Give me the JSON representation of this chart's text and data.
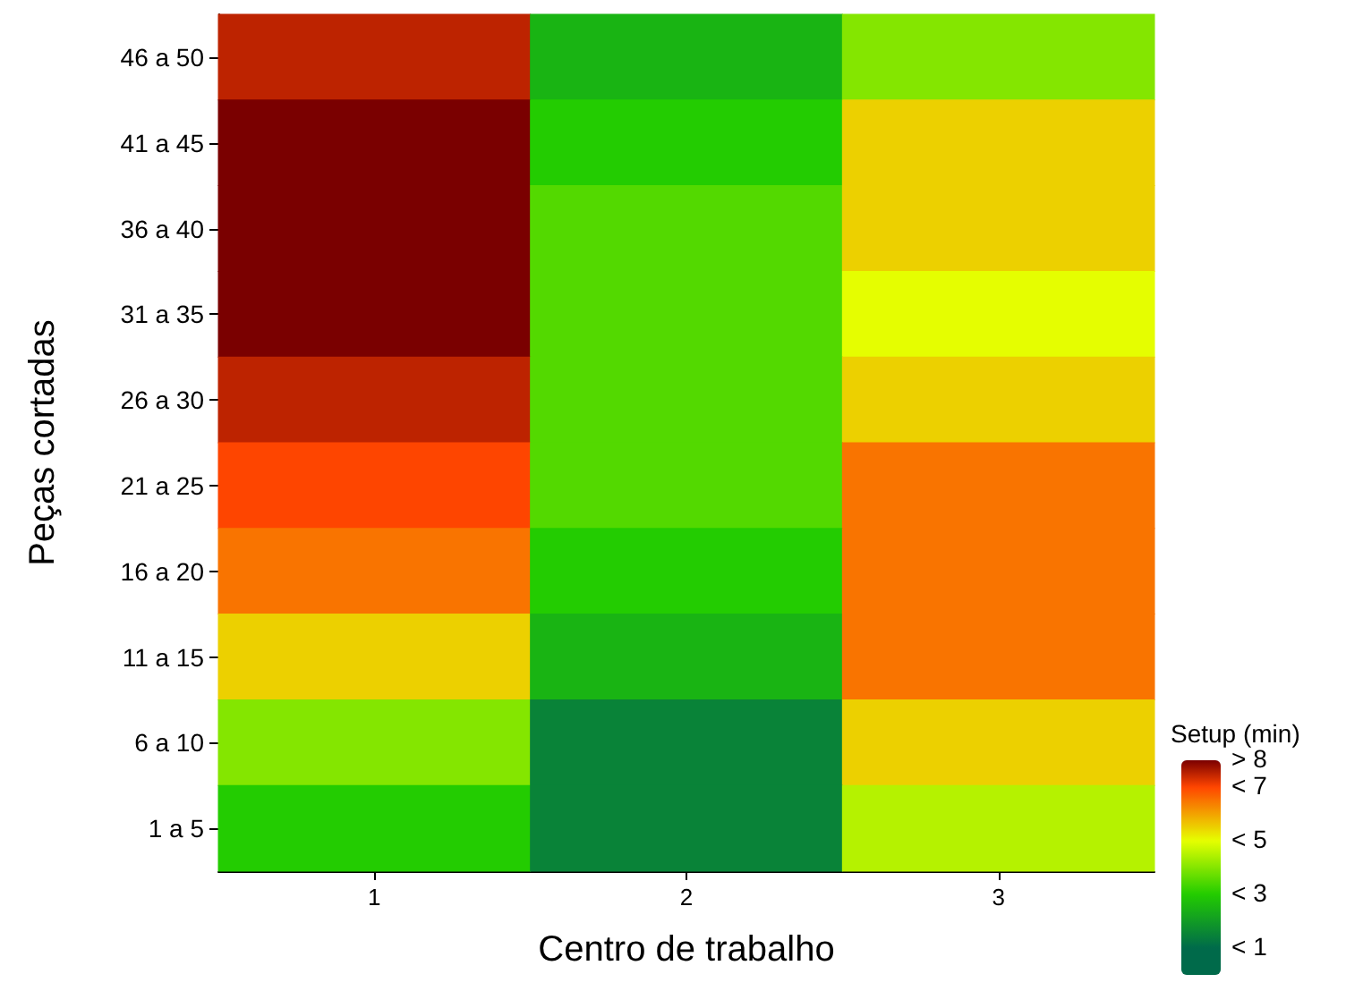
{
  "chart_data": {
    "type": "heatmap",
    "xlabel": "Centro de trabalho",
    "ylabel": "Peças cortadas",
    "clabel": "Setup (min)",
    "categories": [
      "1",
      "2",
      "3"
    ],
    "y_categories": [
      "46 a 50",
      "41 a 45",
      "36 a 40",
      "31 a 35",
      "26 a 30",
      "21 a 25",
      "16 a 20",
      "11 a 15",
      "6 a 10",
      "1 a 5"
    ],
    "cells": [
      [
        7.5,
        2.5,
        4
      ],
      [
        8,
        3,
        5.5
      ],
      [
        8,
        3.5,
        5.5
      ],
      [
        8,
        3.5,
        5
      ],
      [
        7.5,
        3.5,
        5.5
      ],
      [
        7,
        3.5,
        6.5
      ],
      [
        6.5,
        3,
        6.5
      ],
      [
        5.5,
        2.5,
        6.5
      ],
      [
        4,
        1.5,
        5.5
      ],
      [
        3,
        1.5,
        4.5
      ]
    ],
    "clim": [
      0,
      8
    ],
    "cticks": [
      {
        "value": 8,
        "label": "> 8"
      },
      {
        "value": 7,
        "label": "< 7"
      },
      {
        "value": 5,
        "label": "< 5"
      },
      {
        "value": 3,
        "label": "< 3"
      },
      {
        "value": 1,
        "label": "< 1"
      }
    ],
    "colors": [
      "#7a0000",
      "#ff4500",
      "#e6ff00",
      "#22cc00",
      "#006a4a"
    ]
  }
}
